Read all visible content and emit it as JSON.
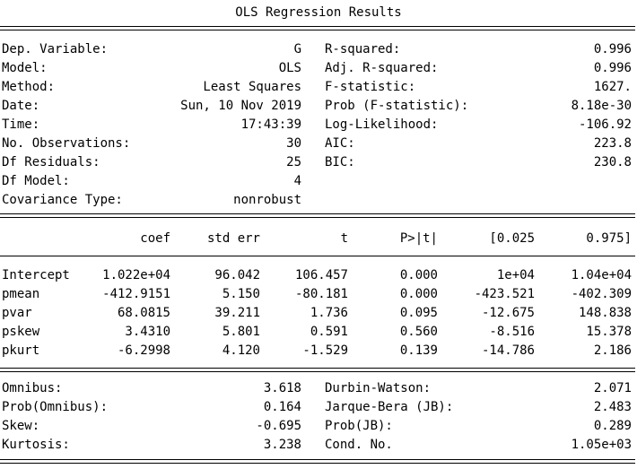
{
  "title": "OLS Regression Results",
  "summary_top": [
    {
      "label": "Dep. Variable:",
      "value": "G",
      "label2": "R-squared:",
      "value2": "0.996"
    },
    {
      "label": "Model:",
      "value": "OLS",
      "label2": "Adj. R-squared:",
      "value2": "0.996"
    },
    {
      "label": "Method:",
      "value": "Least Squares",
      "label2": "F-statistic:",
      "value2": "1627."
    },
    {
      "label": "Date:",
      "value": "Sun, 10 Nov 2019",
      "label2": "Prob (F-statistic):",
      "value2": "8.18e-30"
    },
    {
      "label": "Time:",
      "value": "17:43:39",
      "label2": "Log-Likelihood:",
      "value2": "-106.92"
    },
    {
      "label": "No. Observations:",
      "value": "30",
      "label2": "AIC:",
      "value2": "223.8"
    },
    {
      "label": "Df Residuals:",
      "value": "25",
      "label2": "BIC:",
      "value2": "230.8"
    },
    {
      "label": "Df Model:",
      "value": "4",
      "label2": "",
      "value2": ""
    },
    {
      "label": "Covariance Type:",
      "value": "nonrobust",
      "label2": "",
      "value2": ""
    }
  ],
  "coef_headers": [
    "coef",
    "std err",
    "t",
    "P>|t|",
    "[0.025",
    "0.975]"
  ],
  "coef_rows": [
    {
      "name": "Intercept",
      "coef": "1.022e+04",
      "std_err": "96.042",
      "t": "106.457",
      "p": "0.000",
      "lo": "1e+04",
      "hi": "1.04e+04"
    },
    {
      "name": "pmean",
      "coef": "-412.9151",
      "std_err": "5.150",
      "t": "-80.181",
      "p": "0.000",
      "lo": "-423.521",
      "hi": "-402.309"
    },
    {
      "name": "pvar",
      "coef": "68.0815",
      "std_err": "39.211",
      "t": "1.736",
      "p": "0.095",
      "lo": "-12.675",
      "hi": "148.838"
    },
    {
      "name": "pskew",
      "coef": "3.4310",
      "std_err": "5.801",
      "t": "0.591",
      "p": "0.560",
      "lo": "-8.516",
      "hi": "15.378"
    },
    {
      "name": "pkurt",
      "coef": "-6.2998",
      "std_err": "4.120",
      "t": "-1.529",
      "p": "0.139",
      "lo": "-14.786",
      "hi": "2.186"
    }
  ],
  "summary_bottom": [
    {
      "label": "Omnibus:",
      "value": "3.618",
      "label2": "Durbin-Watson:",
      "value2": "2.071"
    },
    {
      "label": "Prob(Omnibus):",
      "value": "0.164",
      "label2": "Jarque-Bera (JB):",
      "value2": "2.483"
    },
    {
      "label": "Skew:",
      "value": "-0.695",
      "label2": "Prob(JB):",
      "value2": "0.289"
    },
    {
      "label": "Kurtosis:",
      "value": "3.238",
      "label2": "Cond. No.",
      "value2": "1.05e+03"
    }
  ]
}
